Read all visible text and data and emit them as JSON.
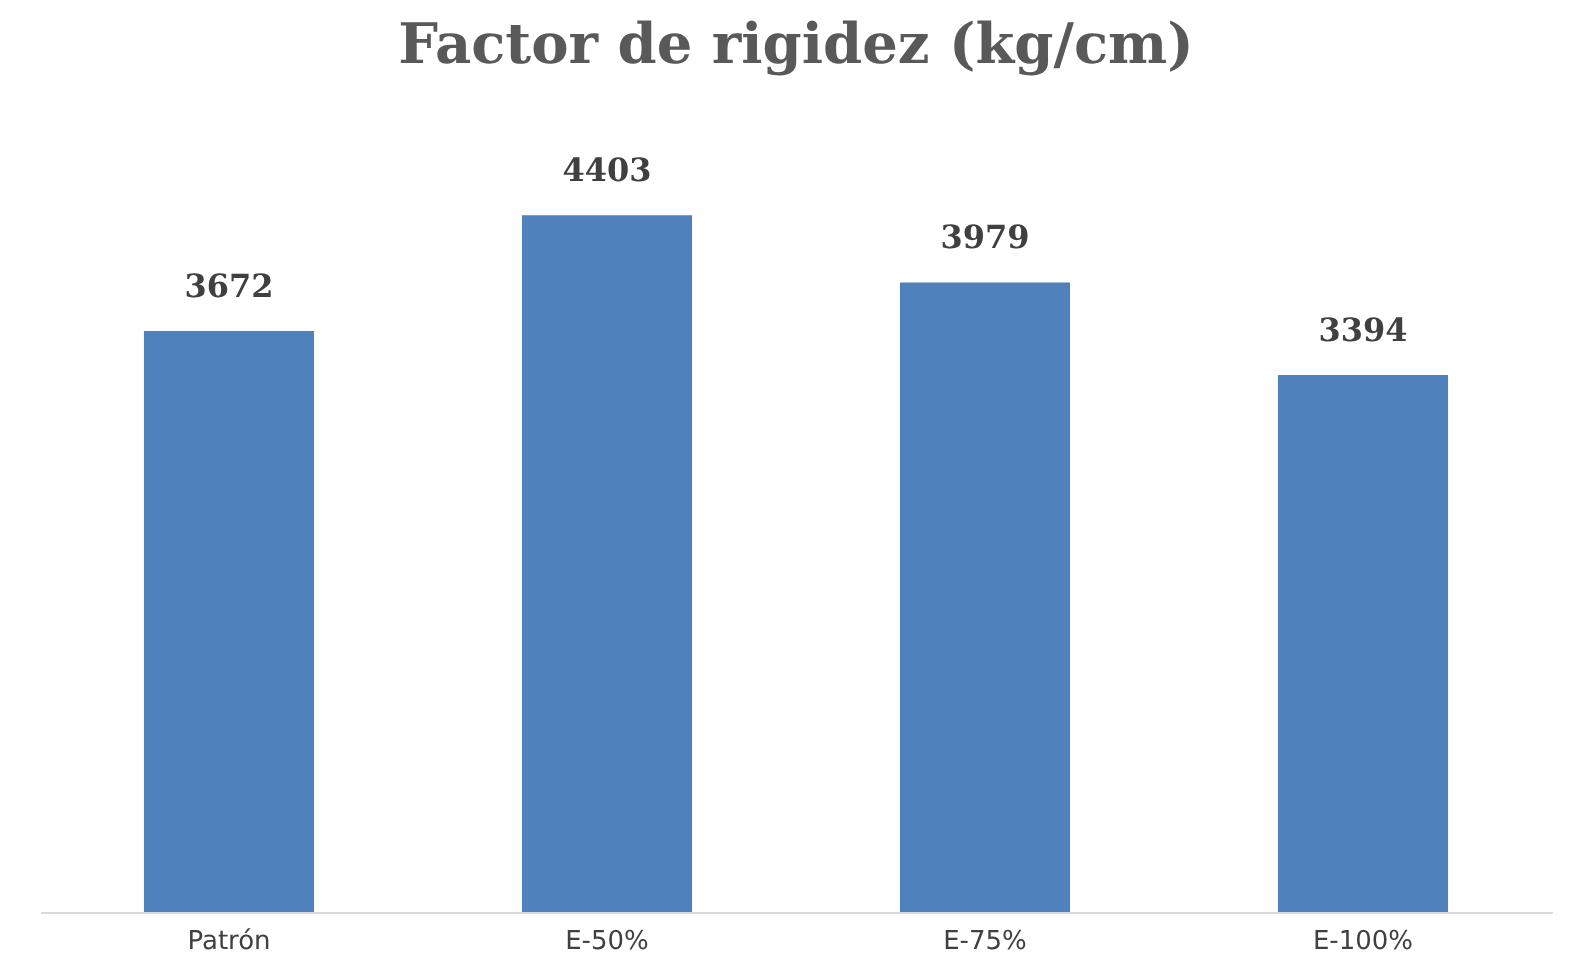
{
  "chart_data": {
    "type": "bar",
    "title": "Factor de rigidez (kg/cm)",
    "categories": [
      "Patrón",
      "E-50%",
      "E-75%",
      "E-100%"
    ],
    "values": [
      3672,
      4403,
      3979,
      3394
    ],
    "color": "#4f81bd",
    "data_labels": true
  }
}
